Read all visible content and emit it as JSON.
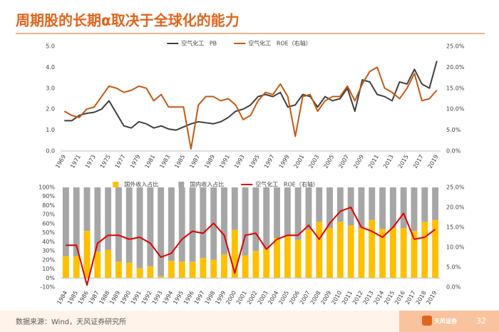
{
  "title": "周期股的长期α取决于全球化的能力",
  "source": "数据来源：Wind，天风证券研究所",
  "logo_text": "天风证券",
  "page_number": "32",
  "chart_data": [
    {
      "type": "line",
      "categories": [
        "1969",
        null,
        "1971",
        null,
        "1973",
        null,
        "1975",
        null,
        "1977",
        null,
        "1979",
        null,
        "1981",
        null,
        "1983",
        null,
        "1985",
        null,
        "1987",
        null,
        "1989",
        null,
        "1991",
        null,
        "1993",
        null,
        "1995",
        null,
        "1997",
        null,
        "1999",
        null,
        "2001",
        null,
        "2003",
        null,
        "2005",
        null,
        "2007",
        null,
        "2009",
        null,
        "2011",
        null,
        "2013",
        null,
        "2015",
        null,
        "2017",
        null,
        "2019"
      ],
      "series": [
        {
          "name": "空气化工   PB",
          "color": "#404040",
          "values": [
            1.45,
            1.45,
            1.7,
            1.8,
            1.85,
            2.0,
            2.4,
            1.8,
            1.2,
            1.1,
            1.4,
            1.3,
            1.1,
            1.2,
            1.05,
            1.0,
            1.15,
            1.3,
            1.4,
            1.35,
            1.3,
            1.4,
            1.6,
            1.9,
            2.0,
            2.2,
            2.6,
            2.7,
            2.6,
            2.8,
            2.1,
            2.2,
            2.7,
            2.6,
            2.1,
            2.6,
            2.4,
            2.5,
            3.0,
            1.9,
            3.4,
            3.3,
            2.7,
            2.6,
            2.4,
            3.3,
            3.2,
            3.9,
            3.2,
            3.0,
            4.3
          ]
        },
        {
          "name": "空气化工   ROE（右轴）",
          "color": "#c55a11",
          "axis": "y2",
          "values": [
            9.5,
            8.5,
            8.0,
            10.0,
            10.5,
            13.0,
            15.5,
            15.0,
            14.0,
            14.5,
            15.5,
            15.0,
            12.0,
            13.5,
            10.5,
            10.5,
            10.5,
            0.5,
            11,
            13,
            13,
            12,
            12.5,
            11,
            7.5,
            8.5,
            12,
            14,
            13.5,
            16,
            13,
            3.5,
            13,
            13.5,
            9.5,
            12,
            13,
            13,
            15.5,
            12,
            16,
            19,
            20,
            15,
            14,
            12.5,
            15,
            18.5,
            12,
            12.5,
            14.5
          ]
        }
      ],
      "ylim": [
        0,
        5
      ],
      "yticks": [
        {
          "value": 0,
          "label": "0.0"
        },
        {
          "value": 1,
          "label": "1.0"
        },
        {
          "value": 2,
          "label": "2.0"
        },
        {
          "value": 3,
          "label": "3.0"
        },
        {
          "value": 4,
          "label": "4.0"
        },
        {
          "value": 5,
          "label": "5.0"
        }
      ],
      "y2lim": [
        0,
        25
      ],
      "y2ticks": [
        {
          "value": 0,
          "label": "0.0%"
        },
        {
          "value": 5,
          "label": "5.0%"
        },
        {
          "value": 10,
          "label": "10.0%"
        },
        {
          "value": 15,
          "label": "15.0%"
        },
        {
          "value": 20,
          "label": "20.0%"
        },
        {
          "value": 25,
          "label": "25.0%"
        }
      ],
      "legend": "top"
    },
    {
      "type": "bar",
      "stacked": true,
      "categories": [
        "1984",
        "1985",
        "1986",
        "1987",
        "1988",
        "1989",
        "1990",
        "1991",
        "1992",
        "1993",
        "1994",
        "1995",
        "1996",
        "1997",
        "1998",
        "1999",
        "2000",
        "2001",
        "2002",
        "2003",
        "2004",
        "2005",
        "2006",
        "2007",
        "2008",
        "2009",
        "2010",
        "2011",
        "2012",
        "2013",
        "2014",
        "2015",
        "2016",
        "2017",
        "2018",
        "2019"
      ],
      "series": [
        {
          "name": "国外收入占比",
          "color": "#ffc000",
          "values": [
            24,
            24,
            52,
            29,
            31,
            18,
            17,
            11,
            13,
            2,
            19,
            18,
            18,
            22,
            20,
            26,
            53,
            25,
            30,
            32,
            44,
            46,
            42,
            53,
            62,
            55,
            62,
            58,
            55,
            64,
            54,
            55,
            55,
            52,
            62,
            64
          ]
        },
        {
          "name": "国内收入占比",
          "color": "#a6a6a6",
          "values": [
            76,
            76,
            48,
            71,
            69,
            82,
            83,
            89,
            87,
            98,
            81,
            82,
            82,
            78,
            80,
            74,
            47,
            75,
            70,
            68,
            56,
            54,
            58,
            47,
            38,
            45,
            38,
            42,
            45,
            36,
            46,
            45,
            45,
            48,
            38,
            36
          ]
        },
        {
          "name": "空气化工   ROE（右轴）",
          "color": "#e00000",
          "axis": "y2",
          "type": "line",
          "values": [
            10.5,
            10.5,
            0.5,
            11,
            13,
            13,
            12,
            12.5,
            11,
            7.5,
            8.5,
            12,
            14,
            13.5,
            16,
            13,
            3.5,
            13,
            13.5,
            9.5,
            12,
            13,
            13,
            15.5,
            12,
            16,
            19,
            20,
            15,
            14,
            12.5,
            15,
            18.5,
            12,
            12.5,
            14.5
          ]
        }
      ],
      "ylim": [
        -10,
        100
      ],
      "yticks": [
        {
          "value": -10,
          "label": "-10%"
        },
        {
          "value": 0,
          "label": "0%"
        },
        {
          "value": 10,
          "label": "10%"
        },
        {
          "value": 20,
          "label": "20%"
        },
        {
          "value": 30,
          "label": "30%"
        },
        {
          "value": 40,
          "label": "40%"
        },
        {
          "value": 50,
          "label": "50%"
        },
        {
          "value": 60,
          "label": "60%"
        },
        {
          "value": 70,
          "label": "70%"
        },
        {
          "value": 80,
          "label": "80%"
        },
        {
          "value": 90,
          "label": "90%"
        },
        {
          "value": 100,
          "label": "100%"
        }
      ],
      "y2lim": [
        0,
        25
      ],
      "y2ticks": [
        {
          "value": 0,
          "label": "0.0%"
        },
        {
          "value": 5,
          "label": "5.0%"
        },
        {
          "value": 10,
          "label": "10.0%"
        },
        {
          "value": 15,
          "label": "15.0%"
        },
        {
          "value": 20,
          "label": "20.0%"
        },
        {
          "value": 25,
          "label": "25.0%"
        }
      ],
      "legend": "top"
    }
  ]
}
